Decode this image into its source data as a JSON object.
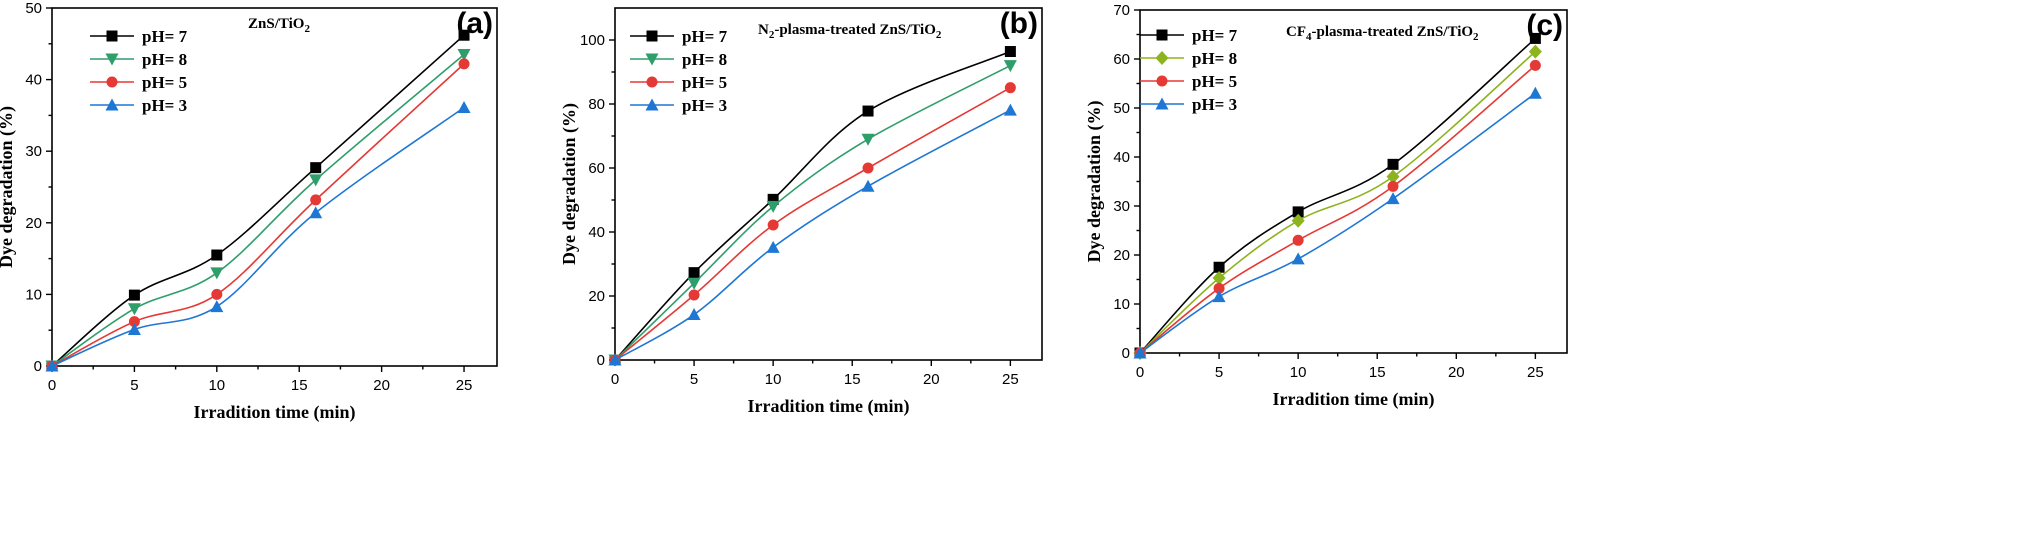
{
  "chart_data": [
    {
      "type": "line",
      "panel_label": "(a)",
      "title_parts": [
        [
          "ZnS/TiO",
          false
        ],
        [
          "2",
          true
        ]
      ],
      "xlabel": "Irradition time (min)",
      "ylabel": "Dye degradation (%)",
      "xlim": [
        0,
        27
      ],
      "ylim": [
        0,
        50
      ],
      "xticks": [
        0,
        5,
        10,
        15,
        20,
        25
      ],
      "yticks": [
        0,
        10,
        20,
        30,
        40,
        50
      ],
      "x": [
        0,
        5,
        10,
        16,
        25
      ],
      "legend_position": "top-left",
      "series": [
        {
          "name": "pH= 7",
          "color": "#000000",
          "marker": "square",
          "values": [
            0,
            9.9,
            15.5,
            27.7,
            46.2
          ]
        },
        {
          "name": "pH= 8",
          "color": "#2e9e6a",
          "marker": "triangle-down",
          "values": [
            0,
            8.0,
            13.0,
            26.0,
            43.5
          ]
        },
        {
          "name": "pH= 5",
          "color": "#e53935",
          "marker": "circle",
          "values": [
            0,
            6.2,
            10.0,
            23.2,
            42.2
          ]
        },
        {
          "name": "pH= 3",
          "color": "#1f77d4",
          "marker": "triangle-up",
          "values": [
            0,
            5.1,
            8.3,
            21.4,
            36.1
          ]
        }
      ]
    },
    {
      "type": "line",
      "panel_label": "(b)",
      "title_parts": [
        [
          "N",
          false
        ],
        [
          "2",
          true
        ],
        [
          "-plasma-treated ZnS/TiO",
          false
        ],
        [
          "2",
          true
        ]
      ],
      "xlabel": "Irradition time (min)",
      "ylabel": "Dye degradation (%)",
      "xlim": [
        0,
        27
      ],
      "ylim": [
        0,
        110
      ],
      "xticks": [
        0,
        5,
        10,
        15,
        20,
        25
      ],
      "yticks": [
        0,
        20,
        40,
        60,
        80,
        100
      ],
      "x": [
        0,
        5,
        10,
        16,
        25
      ],
      "legend_position": "top-left",
      "series": [
        {
          "name": "pH= 7",
          "color": "#000000",
          "marker": "square",
          "values": [
            0,
            27.3,
            50.2,
            77.8,
            96.4
          ]
        },
        {
          "name": "pH= 8",
          "color": "#2e9e6a",
          "marker": "triangle-down",
          "values": [
            0,
            24.0,
            48.0,
            69.0,
            92.0
          ]
        },
        {
          "name": "pH= 5",
          "color": "#e53935",
          "marker": "circle",
          "values": [
            0,
            20.3,
            42.2,
            60.0,
            85.1
          ]
        },
        {
          "name": "pH= 3",
          "color": "#1f77d4",
          "marker": "triangle-up",
          "values": [
            0,
            14.2,
            35.2,
            54.3,
            78.1
          ]
        }
      ]
    },
    {
      "type": "line",
      "panel_label": "(c)",
      "title_parts": [
        [
          "CF",
          false
        ],
        [
          "4",
          true
        ],
        [
          "-plasma-treated ZnS/TiO",
          false
        ],
        [
          "2",
          true
        ]
      ],
      "xlabel": "Irradition time (min)",
      "ylabel": "Dye degradation (%)",
      "xlim": [
        0,
        27
      ],
      "ylim": [
        0,
        70
      ],
      "xticks": [
        0,
        5,
        10,
        15,
        20,
        25
      ],
      "yticks": [
        0,
        10,
        20,
        30,
        40,
        50,
        60,
        70
      ],
      "x": [
        0,
        5,
        10,
        16,
        25
      ],
      "legend_position": "top-left",
      "series": [
        {
          "name": "pH= 7",
          "color": "#000000",
          "marker": "square",
          "values": [
            0,
            17.5,
            28.8,
            38.5,
            64.2
          ]
        },
        {
          "name": "pH= 8",
          "color": "#8db31e",
          "marker": "diamond",
          "values": [
            0,
            15.3,
            27.0,
            36.0,
            61.5
          ]
        },
        {
          "name": "pH= 5",
          "color": "#e53935",
          "marker": "circle",
          "values": [
            0,
            13.2,
            23.0,
            34.0,
            58.7
          ]
        },
        {
          "name": "pH= 3",
          "color": "#1f77d4",
          "marker": "triangle-up",
          "values": [
            0,
            11.5,
            19.2,
            31.5,
            53.0
          ]
        }
      ]
    }
  ]
}
